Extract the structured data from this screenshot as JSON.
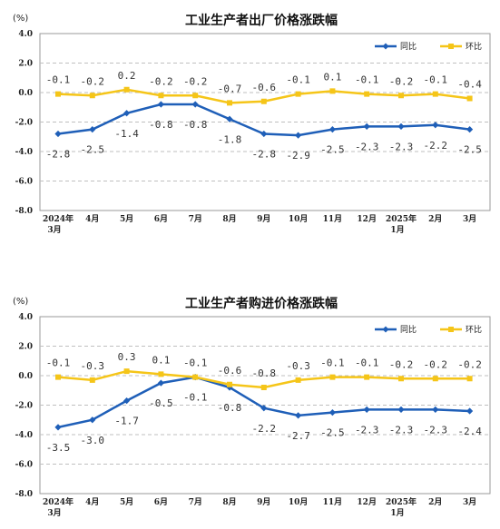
{
  "chart_data": [
    {
      "type": "line",
      "title": "工业生产者出厂价格涨跌幅",
      "unit": "(%)",
      "categories": [
        [
          "2024年",
          "3月"
        ],
        [
          "4月"
        ],
        [
          "5月"
        ],
        [
          "6月"
        ],
        [
          "7月"
        ],
        [
          "8月"
        ],
        [
          "9月"
        ],
        [
          "10月"
        ],
        [
          "11月"
        ],
        [
          "12月"
        ],
        [
          "2025年",
          "1月"
        ],
        [
          "2月"
        ],
        [
          "3月"
        ]
      ],
      "ylim": [
        -8,
        4
      ],
      "yticks": [
        "4.0",
        "2.0",
        "0.0",
        "-2.0",
        "-4.0",
        "-6.0",
        "-8.0"
      ],
      "grid": true,
      "legend_position": "top-right",
      "series": [
        {
          "name": "同比",
          "color": "#1f5fb8",
          "values": [
            -2.8,
            -2.5,
            -1.4,
            -0.8,
            -0.8,
            -1.8,
            -2.8,
            -2.9,
            -2.5,
            -2.3,
            -2.3,
            -2.2,
            -2.5
          ],
          "labels": [
            "-2.8",
            "-2.5",
            "-1.4",
            "-0.8",
            "-0.8",
            "-1.8",
            "-2.8",
            "-2.9",
            "-2.5",
            "-2.3",
            "-2.3",
            "-2.2",
            "-2.5"
          ],
          "label_position": "below"
        },
        {
          "name": "环比",
          "color": "#f5c518",
          "values": [
            -0.1,
            -0.2,
            0.2,
            -0.2,
            -0.2,
            -0.7,
            -0.6,
            -0.1,
            0.1,
            -0.1,
            -0.2,
            -0.1,
            -0.4
          ],
          "labels": [
            "-0.1",
            "-0.2",
            "0.2",
            "-0.2",
            "-0.2",
            "-0.7",
            "-0.6",
            "-0.1",
            "0.1",
            "-0.1",
            "-0.2",
            "-0.1",
            "-0.4"
          ],
          "label_position": "above"
        }
      ]
    },
    {
      "type": "line",
      "title": "工业生产者购进价格涨跌幅",
      "unit": "(%)",
      "categories": [
        [
          "2024年",
          "3月"
        ],
        [
          "4月"
        ],
        [
          "5月"
        ],
        [
          "6月"
        ],
        [
          "7月"
        ],
        [
          "8月"
        ],
        [
          "9月"
        ],
        [
          "10月"
        ],
        [
          "11月"
        ],
        [
          "12月"
        ],
        [
          "2025年",
          "1月"
        ],
        [
          "2月"
        ],
        [
          "3月"
        ]
      ],
      "ylim": [
        -8,
        4
      ],
      "yticks": [
        "4.0",
        "2.0",
        "0.0",
        "-2.0",
        "-4.0",
        "-6.0",
        "-8.0"
      ],
      "grid": true,
      "legend_position": "top-right",
      "series": [
        {
          "name": "同比",
          "color": "#1f5fb8",
          "values": [
            -3.5,
            -3.0,
            -1.7,
            -0.5,
            -0.1,
            -0.8,
            -2.2,
            -2.7,
            -2.5,
            -2.3,
            -2.3,
            -2.3,
            -2.4
          ],
          "labels": [
            "-3.5",
            "-3.0",
            "-1.7",
            "-0.5",
            "-0.1",
            "-0.8",
            "-2.2",
            "-2.7",
            "-2.5",
            "-2.3",
            "-2.3",
            "-2.3",
            "-2.4"
          ],
          "label_position": "below"
        },
        {
          "name": "环比",
          "color": "#f5c518",
          "values": [
            -0.1,
            -0.3,
            0.3,
            0.1,
            -0.1,
            -0.6,
            -0.8,
            -0.3,
            -0.1,
            -0.1,
            -0.2,
            -0.2,
            -0.2
          ],
          "labels": [
            "-0.1",
            "-0.3",
            "0.3",
            "0.1",
            "-0.1",
            "-0.6",
            "-0.8",
            "-0.3",
            "-0.1",
            "-0.1",
            "-0.2",
            "-0.2",
            "-0.2"
          ],
          "label_position": "above"
        }
      ]
    }
  ]
}
